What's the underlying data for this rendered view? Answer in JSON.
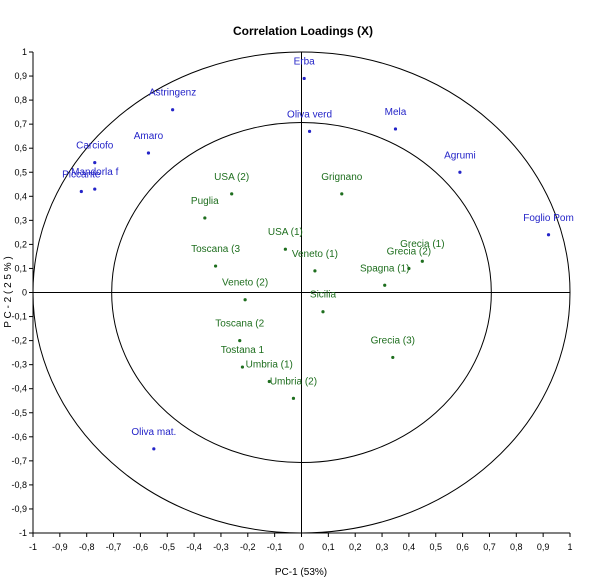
{
  "chart_data": {
    "type": "scatter",
    "title": "Correlation Loadings (X)",
    "xlabel": "PC-1 (53%)",
    "ylabel": "P C - 2  ( 2 5 % )",
    "xlim": [
      -1,
      1
    ],
    "ylim": [
      -1,
      1
    ],
    "x_ticks": [
      "-1",
      "-0,9",
      "-0,8",
      "-0,7",
      "-0,6",
      "-0,5",
      "-0,4",
      "-0,3",
      "-0,2",
      "-0,1",
      "0",
      "0,1",
      "0,2",
      "0,3",
      "0,4",
      "0,5",
      "0,6",
      "0,7",
      "0,8",
      "0,9",
      "1"
    ],
    "y_ticks": [
      "1",
      "0,9",
      "0,8",
      "0,7",
      "0,6",
      "0,5",
      "0,4",
      "0,3",
      "0,2",
      "0,1",
      "0",
      "-0,1",
      "-0,2",
      "-0,3",
      "-0,4",
      "-0,5",
      "-0,6",
      "-0,7",
      "-0,8",
      "-0,9",
      "-1"
    ],
    "circles": [
      1.0,
      0.707
    ],
    "colors": {
      "attribute": "#2424c8",
      "sample": "#1e6e1e",
      "axis": "#000000"
    },
    "points": [
      {
        "label": "Erba",
        "x": 0.01,
        "y": 0.89,
        "group": "attribute"
      },
      {
        "label": "Astringenz",
        "x": -0.48,
        "y": 0.76,
        "group": "attribute"
      },
      {
        "label": "Mela",
        "x": 0.35,
        "y": 0.68,
        "group": "attribute"
      },
      {
        "label": "Oliva verd",
        "x": 0.03,
        "y": 0.67,
        "group": "attribute"
      },
      {
        "label": "Carciofo",
        "x": -0.77,
        "y": 0.54,
        "group": "attribute"
      },
      {
        "label": "Amaro",
        "x": -0.57,
        "y": 0.58,
        "group": "attribute"
      },
      {
        "label": "Mandorla f",
        "x": -0.77,
        "y": 0.43,
        "group": "attribute"
      },
      {
        "label": "Piccante",
        "x": -0.82,
        "y": 0.42,
        "group": "attribute"
      },
      {
        "label": "Agrumi",
        "x": 0.59,
        "y": 0.5,
        "group": "attribute"
      },
      {
        "label": "Foglio Pom",
        "x": 0.92,
        "y": 0.24,
        "group": "attribute"
      },
      {
        "label": "Oliva mat.",
        "x": -0.55,
        "y": -0.65,
        "group": "attribute"
      },
      {
        "label": "USA (2)",
        "x": -0.26,
        "y": 0.41,
        "group": "sample"
      },
      {
        "label": "Grignano",
        "x": 0.15,
        "y": 0.41,
        "group": "sample"
      },
      {
        "label": "Puglia",
        "x": -0.36,
        "y": 0.31,
        "group": "sample"
      },
      {
        "label": "USA (1)",
        "x": -0.06,
        "y": 0.18,
        "group": "sample"
      },
      {
        "label": "Toscana (3",
        "x": -0.32,
        "y": 0.11,
        "group": "sample"
      },
      {
        "label": "Veneto (1)",
        "x": 0.05,
        "y": 0.09,
        "group": "sample"
      },
      {
        "label": "Grecia (1)",
        "x": 0.45,
        "y": 0.13,
        "group": "sample"
      },
      {
        "label": "Grecia (2)",
        "x": 0.4,
        "y": 0.1,
        "group": "sample"
      },
      {
        "label": "Spagna (1)",
        "x": 0.31,
        "y": 0.03,
        "group": "sample"
      },
      {
        "label": "Veneto (2)",
        "x": -0.21,
        "y": -0.03,
        "group": "sample"
      },
      {
        "label": "Sicilia",
        "x": 0.08,
        "y": -0.08,
        "group": "sample"
      },
      {
        "label": "Toscana (2",
        "x": -0.23,
        "y": -0.2,
        "group": "sample"
      },
      {
        "label": "Grecia (3)",
        "x": 0.34,
        "y": -0.27,
        "group": "sample"
      },
      {
        "label": "Tostana 1",
        "x": -0.22,
        "y": -0.31,
        "group": "sample"
      },
      {
        "label": "Umbria (1)",
        "x": -0.12,
        "y": -0.37,
        "group": "sample"
      },
      {
        "label": "Umbria (2)",
        "x": -0.03,
        "y": -0.44,
        "group": "sample"
      }
    ]
  }
}
